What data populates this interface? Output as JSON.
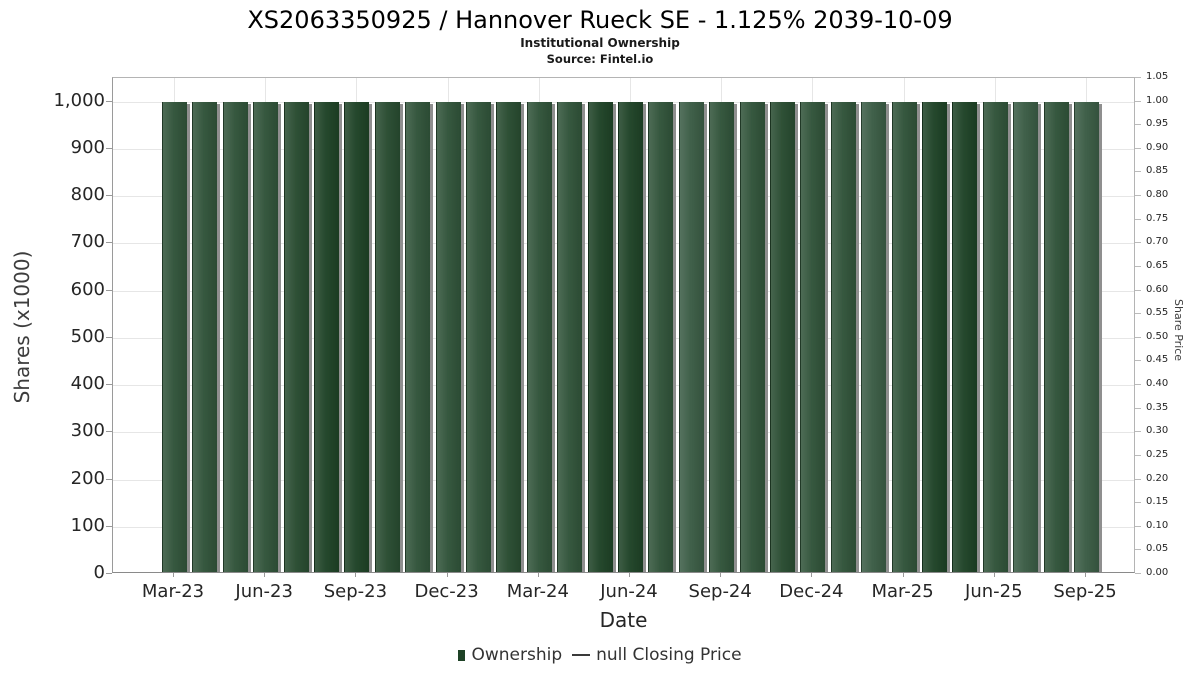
{
  "header": {
    "title": "XS2063350925 / Hannover Rueck SE - 1.125% 2039-10-09",
    "subtitle": "Institutional Ownership",
    "source": "Source: Fintel.io"
  },
  "legend": {
    "ownership_label": "Ownership",
    "closing_price_label": "null Closing Price"
  },
  "chart_data": {
    "type": "bar",
    "title": "XS2063350925 / Hannover Rueck SE - 1.125% 2039-10-09",
    "subtitle": "Institutional Ownership",
    "source": "Source: Fintel.io",
    "xlabel": "Date",
    "ylabel_left": "Shares (x1000)",
    "ylabel_right": "Share Price",
    "grid": true,
    "legend_position": "bottom",
    "categories": [
      "Mar-23",
      "Apr-23",
      "May-23",
      "Jun-23",
      "Jul-23",
      "Aug-23",
      "Sep-23",
      "Oct-23",
      "Nov-23",
      "Dec-23",
      "Jan-24",
      "Feb-24",
      "Mar-24",
      "Apr-24",
      "May-24",
      "Jun-24",
      "Jul-24",
      "Aug-24",
      "Sep-24",
      "Oct-24",
      "Nov-24",
      "Dec-24",
      "Jan-25",
      "Feb-25",
      "Mar-25",
      "Apr-25",
      "May-25",
      "Jun-25",
      "Jul-25",
      "Aug-25",
      "Sep-25"
    ],
    "series": [
      {
        "name": "Ownership",
        "type": "bar",
        "color": "#305339",
        "values": [
          1000,
          1000,
          1000,
          1000,
          1000,
          1000,
          1000,
          1000,
          1000,
          1000,
          1000,
          1000,
          1000,
          1000,
          1000,
          1000,
          1000,
          1000,
          1000,
          1000,
          1000,
          1000,
          1000,
          1000,
          1000,
          1000,
          1000,
          1000,
          1000,
          1000,
          1000
        ],
        "bar_colors": [
          "#305339",
          "#305339",
          "#305339",
          "#305339",
          "#284B30",
          "#1E4226",
          "#1E4226",
          "#284B30",
          "#305339",
          "#305339",
          "#305339",
          "#284B30",
          "#305339",
          "#305339",
          "#1E4226",
          "#1E4226",
          "#305339",
          "#3A5B44",
          "#305339",
          "#305339",
          "#284B30",
          "#305339",
          "#305339",
          "#3A5B44",
          "#305339",
          "#1E4226",
          "#1E4226",
          "#305339",
          "#3A5B44",
          "#305339",
          "#3A5B44"
        ]
      },
      {
        "name": "null Closing Price",
        "type": "line",
        "color": "#3a3a3a",
        "values": []
      }
    ],
    "y_left": {
      "min": 0,
      "max_display": 1000,
      "axis_max": 1050,
      "tick_step": 100,
      "tick_labels": [
        "0",
        "100",
        "200",
        "300",
        "400",
        "500",
        "600",
        "700",
        "800",
        "900",
        "1,000"
      ]
    },
    "y_right": {
      "min": 0,
      "max": 1.05,
      "tick_step": 0.05,
      "tick_labels": [
        "0.00",
        "0.05",
        "0.10",
        "0.15",
        "0.20",
        "0.25",
        "0.30",
        "0.35",
        "0.40",
        "0.45",
        "0.50",
        "0.55",
        "0.60",
        "0.65",
        "0.70",
        "0.75",
        "0.80",
        "0.85",
        "0.90",
        "0.95",
        "1.00",
        "1.05"
      ]
    },
    "x_tick_labels": [
      "Mar-23",
      "Jun-23",
      "Sep-23",
      "Dec-23",
      "Mar-24",
      "Jun-24",
      "Sep-24",
      "Dec-24",
      "Mar-25",
      "Jun-25",
      "Sep-25"
    ],
    "x_tick_month_indices": [
      0,
      3,
      6,
      9,
      12,
      15,
      18,
      21,
      24,
      27,
      30
    ]
  }
}
